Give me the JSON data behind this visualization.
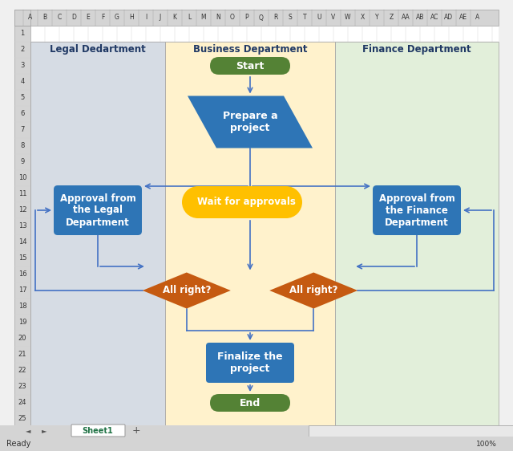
{
  "fig_width": 6.4,
  "fig_height": 5.62,
  "bg_color": "#f0f0f0",
  "lane_colors": {
    "legal": "#d6dce4",
    "business": "#fff2cc",
    "finance": "#e2efda"
  },
  "lane_titles": {
    "legal": "Legal Dedartment",
    "business": "Business Department",
    "finance": "Finance Department"
  },
  "shape_colors": {
    "start_end_green": "#548235",
    "blue_shape": "#2e75b6",
    "yellow_shape": "#ffc000",
    "diamond_orange": "#c55a11"
  },
  "arrow_color": "#4472c4",
  "text_white": "#ffffff"
}
